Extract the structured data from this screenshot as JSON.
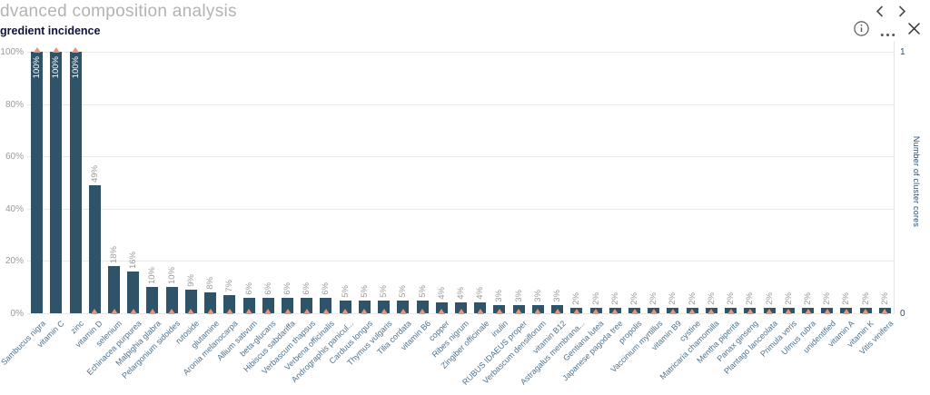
{
  "header": {
    "title": "dvanced composition analysis",
    "icons": {
      "prev": "chevron-left",
      "next": "chevron-right"
    }
  },
  "panel": {
    "title": "gredient incidence",
    "icons": {
      "info": "info-circle",
      "more": "ellipsis",
      "close": "x"
    }
  },
  "chart_data": {
    "type": "bar",
    "title": "gredient incidence",
    "categories": [
      "Sambucus nigra",
      "vitamin C",
      "zinc",
      "vitamin D",
      "selenium",
      "Echinacea purpurea",
      "Malpighia glabra",
      "Pelargonium sidoides",
      "rutoside",
      "glutamine",
      "Aronia melanocarpa",
      "Allium sativum",
      "beta-glucans",
      "Hibiscus sabdariffa",
      "Verbascum thapsus",
      "Verbena officinalis",
      "Andrographis panicul...",
      "Carduus longus",
      "Thymus vulgaris",
      "Tilia cordata",
      "vitamin B6",
      "copper",
      "Ribes nigrum",
      "Zingiber officinale",
      "inulin",
      "RUBUS IDAEUS proper",
      "Verbascum densiflorum",
      "vitamin B12",
      "Astragalus membrana...",
      "Gentiana lutea",
      "Japanese pagoda tree",
      "propolis",
      "Vaccinium myrtillus",
      "vitamin B9",
      "cystine",
      "Matricaria chamomilla",
      "Mentha piperita",
      "Panax ginseng",
      "Plantago lanceolata",
      "Primula veris",
      "Ulmus rubra",
      "unidentified",
      "vitamin A",
      "vitamin K",
      "Vitis vinifera"
    ],
    "series": [
      {
        "name": "ingredient incidence",
        "unit": "%",
        "values": [
          100,
          100,
          100,
          49,
          18,
          16,
          10,
          10,
          9,
          8,
          7,
          6,
          6,
          6,
          6,
          6,
          5,
          5,
          5,
          5,
          5,
          4,
          4,
          4,
          3,
          3,
          3,
          3,
          2,
          2,
          2,
          2,
          2,
          2,
          2,
          2,
          2,
          2,
          2,
          2,
          2,
          2,
          2,
          2,
          2
        ]
      },
      {
        "name": "Number of cluster cores",
        "marker": "triangle",
        "values": [
          1,
          1,
          1,
          0,
          0,
          0,
          0,
          0,
          0,
          0,
          0,
          0,
          0,
          0,
          0,
          0,
          0,
          0,
          0,
          0,
          0,
          0,
          0,
          0,
          0,
          0,
          0,
          0,
          0,
          0,
          0,
          0,
          0,
          0,
          0,
          0,
          0,
          0,
          0,
          0,
          0,
          0,
          0,
          0,
          0
        ]
      }
    ],
    "yaxis_left": {
      "ticks": [
        "0%",
        "20%",
        "40%",
        "60%",
        "80%",
        "100%"
      ],
      "range": [
        0,
        100
      ],
      "grid": true
    },
    "yaxis_right": {
      "title": "Number of cluster cores",
      "ticks": [
        "0",
        "1"
      ],
      "range": [
        0,
        1
      ]
    },
    "xlabel": "",
    "ylabel": "",
    "legend": "none",
    "colors": {
      "bar": "#2f5368",
      "marker": "#e89478",
      "value_label": "#9a9a9a",
      "value_label_inside": "#ffffff",
      "x_label": "#4c7390",
      "grid": "#e9e9e9"
    }
  }
}
